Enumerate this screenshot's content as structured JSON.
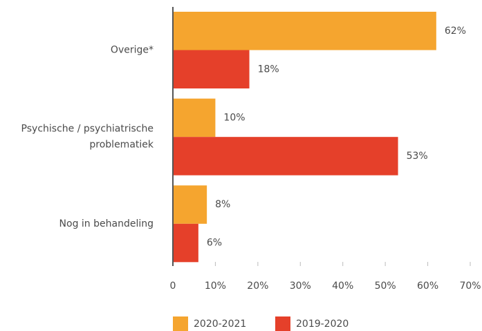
{
  "chart_data": {
    "type": "barh",
    "categories": [
      "Overige*",
      "Psychische / psychiatrische problematiek",
      "Nog in behandeling"
    ],
    "series": [
      {
        "name": "2020-2021",
        "color": "#f5a52f",
        "values": [
          62,
          10,
          8
        ],
        "value_labels": [
          "62%",
          "10%",
          "8%"
        ]
      },
      {
        "name": "2019-2020",
        "color": "#e5402a",
        "values": [
          18,
          53,
          6
        ],
        "value_labels": [
          "18%",
          "53%",
          "6%"
        ]
      }
    ],
    "xlim": [
      0,
      70
    ],
    "xticks": [
      0,
      {
        "value": 10,
        "label": "10%"
      },
      {
        "value": 20,
        "label": "20%"
      },
      {
        "value": 30,
        "label": "30%"
      },
      {
        "value": 40,
        "label": "40%"
      },
      {
        "value": 50,
        "label": "50%"
      },
      {
        "value": 60,
        "label": "60%"
      },
      {
        "value": 70,
        "label": "70%"
      }
    ]
  }
}
